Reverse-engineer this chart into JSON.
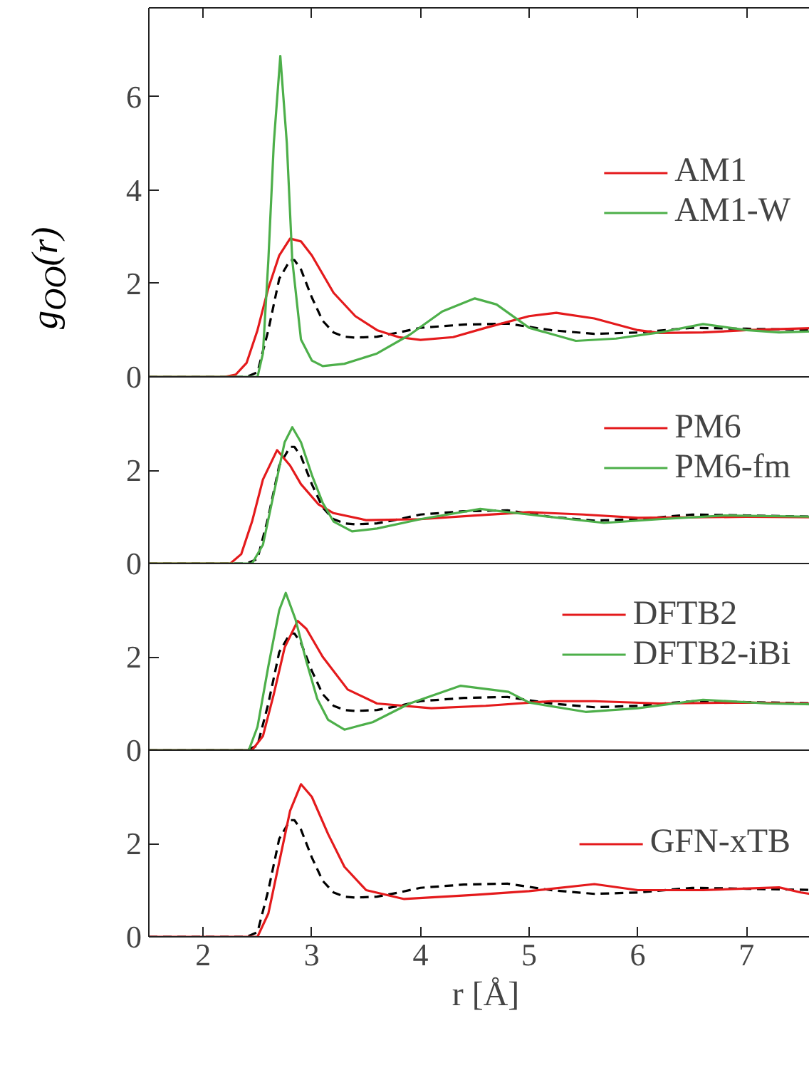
{
  "chart_data": [
    {
      "type": "line",
      "ylabel": "g$_{OO}$(r)",
      "xlim": [
        1.5,
        7.7
      ],
      "xticks": [
        2,
        3,
        4,
        5,
        6,
        7
      ],
      "ylim": [
        0,
        7.9
      ],
      "yticks": [
        0,
        2,
        4,
        6
      ],
      "tick_labels": "y",
      "grid": false,
      "legend": "right",
      "series": [
        {
          "color": "#000000",
          "line_style": "dashed",
          "x": [
            1.5,
            2.4,
            2.5,
            2.6,
            2.7,
            2.8,
            2.84,
            2.9,
            3.0,
            3.1,
            3.2,
            3.3,
            3.4,
            3.6,
            3.8,
            4.0,
            4.4,
            4.8,
            5.2,
            5.6,
            6.0,
            6.5,
            7.0,
            7.7
          ],
          "values": [
            0,
            0,
            0.1,
            1.0,
            2.1,
            2.5,
            2.5,
            2.3,
            1.7,
            1.2,
            0.95,
            0.86,
            0.84,
            0.86,
            0.95,
            1.05,
            1.12,
            1.14,
            1.0,
            0.92,
            0.95,
            1.05,
            1.03,
            1.0
          ]
        },
        {
          "name": "AM1",
          "color": "#e41a1c",
          "line_style": "solid",
          "x": [
            1.5,
            2.2,
            2.3,
            2.4,
            2.5,
            2.6,
            2.7,
            2.8,
            2.9,
            3.0,
            3.1,
            3.2,
            3.4,
            3.6,
            3.8,
            4.0,
            4.3,
            4.6,
            5.0,
            5.25,
            5.6,
            6.0,
            6.2,
            6.6,
            7.0,
            7.7
          ],
          "values": [
            0,
            0,
            0.05,
            0.3,
            1.0,
            1.9,
            2.6,
            2.96,
            2.9,
            2.6,
            2.2,
            1.8,
            1.3,
            1.0,
            0.85,
            0.79,
            0.85,
            1.05,
            1.3,
            1.37,
            1.25,
            1.0,
            0.94,
            0.95,
            1.0,
            1.05
          ]
        },
        {
          "name": "AM1-W",
          "color": "#4daf4a",
          "line_style": "solid",
          "x": [
            1.5,
            2.5,
            2.55,
            2.6,
            2.65,
            2.71,
            2.77,
            2.82,
            2.9,
            3.0,
            3.1,
            3.3,
            3.6,
            3.9,
            4.2,
            4.5,
            4.7,
            5.0,
            5.43,
            5.8,
            6.2,
            6.6,
            7.0,
            7.3,
            7.7
          ],
          "values": [
            0,
            0,
            0.5,
            2.5,
            5.0,
            6.87,
            5.0,
            2.5,
            0.8,
            0.35,
            0.23,
            0.28,
            0.5,
            0.9,
            1.4,
            1.68,
            1.55,
            1.05,
            0.77,
            0.82,
            0.95,
            1.13,
            1.0,
            0.95,
            0.98
          ]
        }
      ]
    },
    {
      "type": "line",
      "xlim": [
        1.5,
        7.7
      ],
      "xticks": [
        2,
        3,
        4,
        5,
        6,
        7
      ],
      "ylim": [
        0,
        4
      ],
      "yticks": [
        0,
        2
      ],
      "tick_labels": "y",
      "grid": false,
      "legend": "top right",
      "series": [
        {
          "color": "#000000",
          "line_style": "dashed",
          "x": [
            1.5,
            2.4,
            2.5,
            2.6,
            2.7,
            2.8,
            2.84,
            2.9,
            3.0,
            3.1,
            3.2,
            3.3,
            3.4,
            3.6,
            3.8,
            4.0,
            4.4,
            4.8,
            5.2,
            5.6,
            6.0,
            6.5,
            7.0,
            7.7
          ],
          "values": [
            0,
            0,
            0.1,
            1.0,
            2.1,
            2.5,
            2.5,
            2.3,
            1.7,
            1.2,
            0.95,
            0.86,
            0.84,
            0.86,
            0.95,
            1.05,
            1.12,
            1.14,
            1.0,
            0.92,
            0.95,
            1.05,
            1.03,
            1.0
          ]
        },
        {
          "name": "PM6",
          "color": "#e41a1c",
          "line_style": "solid",
          "x": [
            1.5,
            2.25,
            2.35,
            2.45,
            2.55,
            2.68,
            2.8,
            2.9,
            3.06,
            3.2,
            3.5,
            4.0,
            4.5,
            5.0,
            5.5,
            6.0,
            7.0,
            7.7
          ],
          "values": [
            0,
            0,
            0.2,
            0.9,
            1.8,
            2.43,
            2.1,
            1.7,
            1.27,
            1.08,
            0.93,
            0.95,
            1.03,
            1.1,
            1.05,
            0.98,
            1.0,
            0.99
          ]
        },
        {
          "name": "PM6-fm",
          "color": "#4daf4a",
          "line_style": "solid",
          "x": [
            1.5,
            2.45,
            2.55,
            2.65,
            2.75,
            2.82,
            2.9,
            3.0,
            3.1,
            3.2,
            3.37,
            3.6,
            4.0,
            4.55,
            5.0,
            5.69,
            6.2,
            6.8,
            7.7
          ],
          "values": [
            0,
            0,
            0.4,
            1.5,
            2.6,
            2.92,
            2.6,
            1.9,
            1.3,
            0.9,
            0.69,
            0.75,
            0.95,
            1.17,
            1.05,
            0.87,
            0.95,
            1.03,
            1.0
          ]
        }
      ]
    },
    {
      "type": "line",
      "xlim": [
        1.5,
        7.7
      ],
      "xticks": [
        2,
        3,
        4,
        5,
        6,
        7
      ],
      "ylim": [
        0,
        4
      ],
      "yticks": [
        0,
        2
      ],
      "tick_labels": "y",
      "grid": false,
      "legend": "top right",
      "series": [
        {
          "color": "#000000",
          "line_style": "dashed",
          "x": [
            1.5,
            2.4,
            2.5,
            2.6,
            2.7,
            2.8,
            2.84,
            2.9,
            3.0,
            3.1,
            3.2,
            3.3,
            3.4,
            3.6,
            3.8,
            4.0,
            4.4,
            4.8,
            5.2,
            5.6,
            6.0,
            6.5,
            7.0,
            7.7
          ],
          "values": [
            0,
            0,
            0.1,
            1.0,
            2.1,
            2.5,
            2.5,
            2.3,
            1.7,
            1.2,
            0.95,
            0.86,
            0.84,
            0.86,
            0.95,
            1.05,
            1.12,
            1.14,
            1.0,
            0.92,
            0.95,
            1.05,
            1.03,
            1.0
          ]
        },
        {
          "name": "DFTB2",
          "color": "#e41a1c",
          "line_style": "solid",
          "x": [
            1.5,
            2.45,
            2.55,
            2.65,
            2.75,
            2.87,
            2.95,
            3.1,
            3.33,
            3.6,
            4.1,
            4.6,
            5.2,
            5.6,
            6.2,
            7.0,
            7.7
          ],
          "values": [
            0,
            0,
            0.3,
            1.2,
            2.2,
            2.77,
            2.6,
            2.0,
            1.3,
            1.0,
            0.9,
            0.95,
            1.05,
            1.05,
            1.0,
            1.02,
            0.99
          ]
        },
        {
          "name": "DFTB2-iBi",
          "color": "#4daf4a",
          "line_style": "solid",
          "x": [
            1.5,
            2.42,
            2.5,
            2.6,
            2.7,
            2.76,
            2.85,
            2.95,
            3.05,
            3.15,
            3.3,
            3.56,
            3.9,
            4.37,
            4.81,
            5.0,
            5.52,
            6.0,
            6.6,
            7.2,
            7.7
          ],
          "values": [
            0,
            0,
            0.5,
            1.8,
            3.0,
            3.37,
            2.8,
            1.9,
            1.1,
            0.65,
            0.44,
            0.6,
            1.0,
            1.38,
            1.25,
            1.02,
            0.82,
            0.9,
            1.08,
            1.0,
            0.98
          ]
        }
      ]
    },
    {
      "type": "line",
      "xlabel": "r [Å]",
      "xlim": [
        1.5,
        7.7
      ],
      "xticks": [
        2,
        3,
        4,
        5,
        6,
        7
      ],
      "ylim": [
        0,
        4
      ],
      "yticks": [
        0,
        2
      ],
      "grid": false,
      "legend": "right",
      "series": [
        {
          "color": "#000000",
          "line_style": "dashed",
          "x": [
            1.5,
            2.4,
            2.5,
            2.6,
            2.7,
            2.8,
            2.84,
            2.9,
            3.0,
            3.1,
            3.2,
            3.3,
            3.4,
            3.6,
            3.8,
            4.0,
            4.4,
            4.8,
            5.2,
            5.6,
            6.0,
            6.5,
            7.0,
            7.7
          ],
          "values": [
            0,
            0,
            0.1,
            1.0,
            2.1,
            2.5,
            2.5,
            2.3,
            1.7,
            1.2,
            0.95,
            0.86,
            0.84,
            0.86,
            0.95,
            1.05,
            1.12,
            1.14,
            1.0,
            0.92,
            0.95,
            1.05,
            1.03,
            1.0
          ]
        },
        {
          "name": "GFN-xTB",
          "color": "#e41a1c",
          "line_style": "solid",
          "x": [
            1.5,
            2.5,
            2.6,
            2.7,
            2.8,
            2.9,
            3.0,
            3.15,
            3.3,
            3.5,
            3.85,
            4.5,
            5.0,
            5.6,
            6.0,
            6.6,
            7.3,
            7.5,
            7.7
          ],
          "values": [
            0,
            0,
            0.5,
            1.6,
            2.7,
            3.27,
            3.0,
            2.2,
            1.5,
            1.0,
            0.81,
            0.9,
            0.98,
            1.13,
            1.0,
            1.0,
            1.06,
            0.95,
            0.88
          ]
        }
      ]
    }
  ]
}
